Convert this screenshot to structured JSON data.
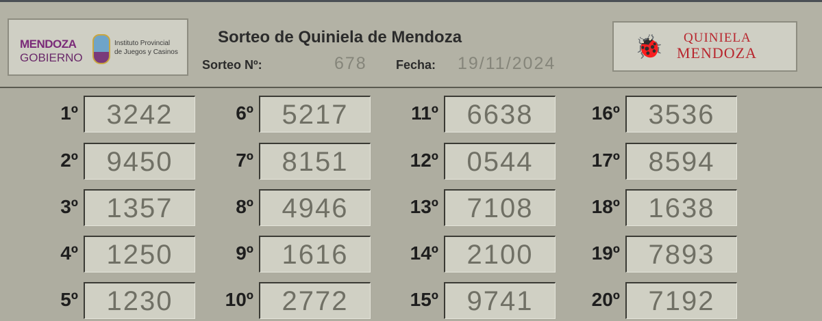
{
  "header": {
    "title": "Sorteo de Quiniela de Mendoza",
    "sorteo_label": "Sorteo Nº:",
    "sorteo_value": "678",
    "fecha_label": "Fecha:",
    "fecha_value": "19/11/2024",
    "logo_left": {
      "line1": "MENDOZA",
      "line2": "GOBIERNO",
      "inst1": "Instituto Provincial",
      "inst2": "de Juegos y Casinos"
    },
    "logo_right": {
      "line1": "QUINIELA",
      "line2": "MENDOZA"
    }
  },
  "results": [
    {
      "pos": "1º",
      "num": "3242"
    },
    {
      "pos": "2º",
      "num": "9450"
    },
    {
      "pos": "3º",
      "num": "1357"
    },
    {
      "pos": "4º",
      "num": "1250"
    },
    {
      "pos": "5º",
      "num": "1230"
    },
    {
      "pos": "6º",
      "num": "5217"
    },
    {
      "pos": "7º",
      "num": "8151"
    },
    {
      "pos": "8º",
      "num": "4946"
    },
    {
      "pos": "9º",
      "num": "1616"
    },
    {
      "pos": "10º",
      "num": "2772"
    },
    {
      "pos": "11º",
      "num": "6638"
    },
    {
      "pos": "12º",
      "num": "0544"
    },
    {
      "pos": "13º",
      "num": "7108"
    },
    {
      "pos": "14º",
      "num": "2100"
    },
    {
      "pos": "15º",
      "num": "9741"
    },
    {
      "pos": "16º",
      "num": "3536"
    },
    {
      "pos": "17º",
      "num": "8594"
    },
    {
      "pos": "18º",
      "num": "1638"
    },
    {
      "pos": "19º",
      "num": "7893"
    },
    {
      "pos": "20º",
      "num": "7192"
    }
  ]
}
